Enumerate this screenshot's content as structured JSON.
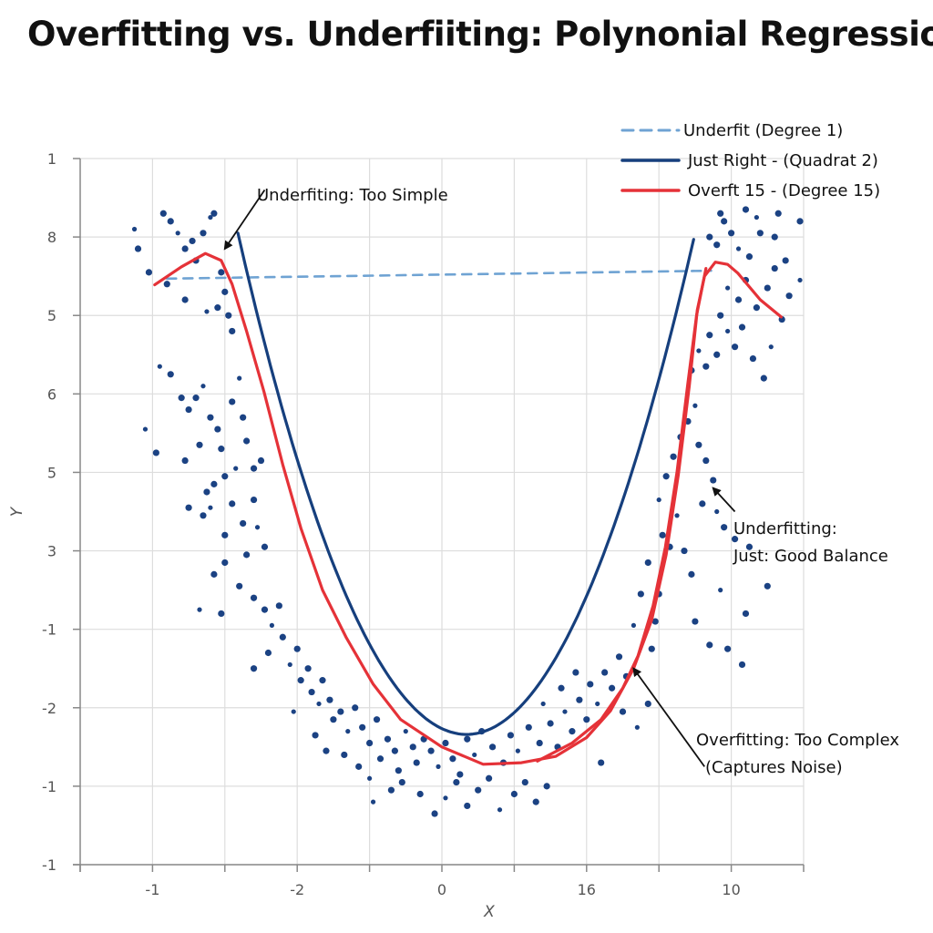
{
  "title": "Overfitting vs. Underfiiting: Polynonial Regression",
  "colors": {
    "underfit": "#6fa3d3",
    "just_right": "#163f7d",
    "overfit": "#e53238",
    "points": "#1b4283",
    "grid": "#dddddd",
    "axis": "#888888",
    "text": "#111111"
  },
  "chart_data": {
    "type": "scatter",
    "title": "Overfitting vs. Underfiiting: Polynonial Regression",
    "xlabel": "X",
    "ylabel": "Y",
    "xlim": [
      -5,
      5
    ],
    "ylim": [
      -1,
      8
    ],
    "grid": true,
    "x_ticks": [
      {
        "value": -4,
        "label": "-1"
      },
      {
        "value": -2,
        "label": "-2"
      },
      {
        "value": 0,
        "label": "0"
      },
      {
        "value": 2,
        "label": "16"
      },
      {
        "value": 4,
        "label": "10"
      }
    ],
    "x_minor_ticks": [
      -5,
      -3,
      -1,
      1,
      3,
      5
    ],
    "y_ticks": [
      {
        "value": 8,
        "label": "1"
      },
      {
        "value": 7,
        "label": "8"
      },
      {
        "value": 6,
        "label": "5"
      },
      {
        "value": 5,
        "label": "6"
      },
      {
        "value": 4,
        "label": "5"
      },
      {
        "value": 3,
        "label": "3"
      },
      {
        "value": 2,
        "label": "-1"
      },
      {
        "value": 1,
        "label": "-2"
      },
      {
        "value": 0,
        "label": "-1"
      },
      {
        "value": -1,
        "label": "-1"
      }
    ],
    "legend": {
      "position": "top-right",
      "entries": [
        {
          "label": "Underfit (Degree 1)",
          "style": "dashed",
          "series": "underfit"
        },
        {
          "label": "Just Right - (Quadrat 2)",
          "style": "solid",
          "series": "just_right"
        },
        {
          "label": "Overft 15 - (Degree 15)",
          "style": "solid",
          "series": "overfit"
        }
      ]
    },
    "series": [
      {
        "name": "Underfit (Degree 1)",
        "key": "underfit",
        "type": "line",
        "points": [
          [
            -3.8,
            6.47
          ],
          [
            3.72,
            6.57
          ]
        ]
      },
      {
        "name": "Just Right - (Quadrat 2)",
        "key": "just_right",
        "type": "quadratic",
        "vertex": [
          0.34,
          0.66
        ],
        "coefficient": 0.64,
        "x_range": [
          -2.82,
          3.5
        ]
      },
      {
        "name": "Overft 15 - (Degree 15)",
        "key": "overfit",
        "type": "line",
        "points": [
          [
            -3.97,
            6.39
          ],
          [
            -3.6,
            6.62
          ],
          [
            -3.27,
            6.79
          ],
          [
            -3.05,
            6.7
          ],
          [
            -2.9,
            6.4
          ],
          [
            -2.7,
            5.8
          ],
          [
            -2.46,
            5.03
          ],
          [
            -2.2,
            4.1
          ],
          [
            -1.95,
            3.29
          ],
          [
            -1.65,
            2.5
          ],
          [
            -1.32,
            1.89
          ],
          [
            -0.95,
            1.3
          ],
          [
            -0.57,
            0.85
          ],
          [
            0.0,
            0.5
          ],
          [
            0.57,
            0.28
          ],
          [
            1.1,
            0.3
          ],
          [
            1.57,
            0.38
          ],
          [
            2.0,
            0.62
          ],
          [
            2.33,
            0.96
          ],
          [
            2.65,
            1.5
          ],
          [
            2.9,
            2.12
          ],
          [
            3.1,
            2.95
          ],
          [
            3.27,
            3.98
          ],
          [
            3.42,
            5.1
          ],
          [
            3.53,
            6.07
          ],
          [
            3.63,
            6.5
          ],
          [
            3.78,
            6.68
          ],
          [
            3.95,
            6.65
          ],
          [
            4.09,
            6.54
          ],
          [
            4.4,
            6.2
          ],
          [
            4.69,
            5.98
          ]
        ]
      },
      {
        "name": "Overft 15 - (Degree 15) inner strand",
        "key": "overfit",
        "type": "line",
        "points": [
          [
            1.32,
            0.32
          ],
          [
            1.8,
            0.55
          ],
          [
            2.2,
            0.85
          ],
          [
            2.5,
            1.25
          ],
          [
            2.71,
            1.66
          ],
          [
            2.92,
            2.3
          ],
          [
            3.09,
            3.05
          ],
          [
            3.25,
            4.0
          ],
          [
            3.4,
            5.14
          ],
          [
            3.52,
            6.0
          ],
          [
            3.65,
            6.6
          ]
        ]
      },
      {
        "name": "Data points",
        "key": "points",
        "type": "scatter",
        "points": [
          [
            -4.25,
            7.1
          ],
          [
            -4.2,
            6.85
          ],
          [
            -4.05,
            6.55
          ],
          [
            -3.85,
            7.3
          ],
          [
            -3.75,
            7.2
          ],
          [
            -3.65,
            7.05
          ],
          [
            -3.55,
            6.85
          ],
          [
            -3.45,
            6.95
          ],
          [
            -3.4,
            6.7
          ],
          [
            -3.3,
            7.05
          ],
          [
            -3.2,
            7.25
          ],
          [
            -3.15,
            7.3
          ],
          [
            -3.05,
            6.55
          ],
          [
            -3.0,
            6.3
          ],
          [
            -3.1,
            6.1
          ],
          [
            -3.25,
            6.05
          ],
          [
            -3.55,
            6.2
          ],
          [
            -3.8,
            6.4
          ],
          [
            -2.95,
            6.0
          ],
          [
            -2.9,
            5.8
          ],
          [
            -3.9,
            5.35
          ],
          [
            -3.75,
            5.25
          ],
          [
            -3.6,
            4.95
          ],
          [
            -3.5,
            4.8
          ],
          [
            -3.4,
            4.95
          ],
          [
            -3.3,
            5.1
          ],
          [
            -3.2,
            4.7
          ],
          [
            -3.1,
            4.55
          ],
          [
            -3.05,
            4.3
          ],
          [
            -2.9,
            4.9
          ],
          [
            -2.8,
            5.2
          ],
          [
            -2.75,
            4.7
          ],
          [
            -2.7,
            4.4
          ],
          [
            -2.6,
            4.05
          ],
          [
            -2.5,
            4.15
          ],
          [
            -2.85,
            4.05
          ],
          [
            -3.0,
            3.95
          ],
          [
            -3.15,
            3.85
          ],
          [
            -3.25,
            3.75
          ],
          [
            -3.5,
            3.55
          ],
          [
            -4.1,
            4.55
          ],
          [
            -3.95,
            4.25
          ],
          [
            -3.55,
            4.15
          ],
          [
            -3.35,
            4.35
          ],
          [
            -3.3,
            3.45
          ],
          [
            -3.2,
            3.55
          ],
          [
            -3.0,
            3.2
          ],
          [
            -2.9,
            3.6
          ],
          [
            -2.75,
            3.35
          ],
          [
            -2.6,
            3.65
          ],
          [
            -2.55,
            3.3
          ],
          [
            -2.45,
            3.05
          ],
          [
            -2.7,
            2.95
          ],
          [
            -3.0,
            2.85
          ],
          [
            -3.15,
            2.7
          ],
          [
            -3.35,
            2.25
          ],
          [
            -3.05,
            2.2
          ],
          [
            -2.8,
            2.55
          ],
          [
            -2.6,
            2.4
          ],
          [
            -2.45,
            2.25
          ],
          [
            -2.35,
            2.05
          ],
          [
            -2.25,
            2.3
          ],
          [
            -2.2,
            1.9
          ],
          [
            -2.4,
            1.7
          ],
          [
            -2.6,
            1.5
          ],
          [
            -2.1,
            1.55
          ],
          [
            -2.0,
            1.75
          ],
          [
            -1.95,
            1.35
          ],
          [
            -1.85,
            1.5
          ],
          [
            -1.8,
            1.2
          ],
          [
            -1.7,
            1.05
          ],
          [
            -1.65,
            1.35
          ],
          [
            -1.55,
            1.1
          ],
          [
            -1.5,
            0.85
          ],
          [
            -1.4,
            0.95
          ],
          [
            -1.3,
            0.7
          ],
          [
            -1.2,
            1.0
          ],
          [
            -1.1,
            0.75
          ],
          [
            -1.0,
            0.55
          ],
          [
            -0.9,
            0.85
          ],
          [
            -2.05,
            0.95
          ],
          [
            -1.75,
            0.65
          ],
          [
            -1.6,
            0.45
          ],
          [
            -1.35,
            0.4
          ],
          [
            -1.15,
            0.25
          ],
          [
            -1.0,
            0.1
          ],
          [
            -0.85,
            0.35
          ],
          [
            -0.75,
            0.6
          ],
          [
            -0.65,
            0.45
          ],
          [
            -0.6,
            0.2
          ],
          [
            -0.5,
            0.7
          ],
          [
            -0.4,
            0.5
          ],
          [
            -0.35,
            0.3
          ],
          [
            -0.25,
            0.6
          ],
          [
            -0.15,
            0.45
          ],
          [
            -0.05,
            0.25
          ],
          [
            0.05,
            0.55
          ],
          [
            0.15,
            0.35
          ],
          [
            0.25,
            0.15
          ],
          [
            0.35,
            0.6
          ],
          [
            -0.95,
            -0.2
          ],
          [
            -0.7,
            -0.05
          ],
          [
            -0.55,
            0.05
          ],
          [
            -0.3,
            -0.1
          ],
          [
            -0.1,
            -0.35
          ],
          [
            0.05,
            -0.15
          ],
          [
            0.2,
            0.05
          ],
          [
            0.35,
            -0.25
          ],
          [
            0.5,
            -0.05
          ],
          [
            0.65,
            0.1
          ],
          [
            0.8,
            -0.3
          ],
          [
            1.0,
            -0.1
          ],
          [
            1.15,
            0.05
          ],
          [
            1.3,
            -0.2
          ],
          [
            1.45,
            0.0
          ],
          [
            0.45,
            0.4
          ],
          [
            0.55,
            0.7
          ],
          [
            0.7,
            0.5
          ],
          [
            0.85,
            0.3
          ],
          [
            0.95,
            0.65
          ],
          [
            1.05,
            0.45
          ],
          [
            1.2,
            0.75
          ],
          [
            1.35,
            0.55
          ],
          [
            1.5,
            0.8
          ],
          [
            1.6,
            0.5
          ],
          [
            1.7,
            0.95
          ],
          [
            1.8,
            0.7
          ],
          [
            1.9,
            1.1
          ],
          [
            2.0,
            0.85
          ],
          [
            2.05,
            1.3
          ],
          [
            2.15,
            1.05
          ],
          [
            2.25,
            1.45
          ],
          [
            2.35,
            1.25
          ],
          [
            2.45,
            1.65
          ],
          [
            2.55,
            1.4
          ],
          [
            1.4,
            1.05
          ],
          [
            1.65,
            1.25
          ],
          [
            1.85,
            1.45
          ],
          [
            2.2,
            0.3
          ],
          [
            2.5,
            0.95
          ],
          [
            2.7,
            0.75
          ],
          [
            2.85,
            1.05
          ],
          [
            2.9,
            1.75
          ],
          [
            2.95,
            2.1
          ],
          [
            3.0,
            2.45
          ],
          [
            2.65,
            2.05
          ],
          [
            2.75,
            2.45
          ],
          [
            2.85,
            2.85
          ],
          [
            3.05,
            3.2
          ],
          [
            3.15,
            3.05
          ],
          [
            3.25,
            3.45
          ],
          [
            3.35,
            3.0
          ],
          [
            3.45,
            2.7
          ],
          [
            3.5,
            2.1
          ],
          [
            3.7,
            1.8
          ],
          [
            3.0,
            3.65
          ],
          [
            3.1,
            3.95
          ],
          [
            3.2,
            4.2
          ],
          [
            3.3,
            4.45
          ],
          [
            3.4,
            4.65
          ],
          [
            3.5,
            4.85
          ],
          [
            3.55,
            4.35
          ],
          [
            3.65,
            4.15
          ],
          [
            3.75,
            3.9
          ],
          [
            3.6,
            3.6
          ],
          [
            3.8,
            3.5
          ],
          [
            3.9,
            3.3
          ],
          [
            4.05,
            3.15
          ],
          [
            4.25,
            3.05
          ],
          [
            4.5,
            2.55
          ],
          [
            3.85,
            2.5
          ],
          [
            4.2,
            2.2
          ],
          [
            3.95,
            1.75
          ],
          [
            4.15,
            1.55
          ],
          [
            3.45,
            5.3
          ],
          [
            3.55,
            5.55
          ],
          [
            3.65,
            5.35
          ],
          [
            3.7,
            5.75
          ],
          [
            3.8,
            5.5
          ],
          [
            3.85,
            6.0
          ],
          [
            3.95,
            5.8
          ],
          [
            4.05,
            5.6
          ],
          [
            4.15,
            5.85
          ],
          [
            4.3,
            5.45
          ],
          [
            4.45,
            5.2
          ],
          [
            4.55,
            5.6
          ],
          [
            4.35,
            6.1
          ],
          [
            4.5,
            6.35
          ],
          [
            4.2,
            6.45
          ],
          [
            4.1,
            6.2
          ],
          [
            3.95,
            6.35
          ],
          [
            3.8,
            6.9
          ],
          [
            3.7,
            7.0
          ],
          [
            3.9,
            7.2
          ],
          [
            4.0,
            7.05
          ],
          [
            4.1,
            6.85
          ],
          [
            4.25,
            6.75
          ],
          [
            4.4,
            7.05
          ],
          [
            4.6,
            6.6
          ],
          [
            4.75,
            6.7
          ],
          [
            4.95,
            6.45
          ],
          [
            4.7,
            5.95
          ],
          [
            4.65,
            7.3
          ],
          [
            4.95,
            7.2
          ],
          [
            4.6,
            7.0
          ],
          [
            4.35,
            7.25
          ],
          [
            3.85,
            7.3
          ],
          [
            4.2,
            7.35
          ],
          [
            4.8,
            6.25
          ]
        ]
      }
    ],
    "annotations": [
      {
        "text": "Underfiting: Too Simple",
        "arrow_from": [
          -2.45,
          7.6
        ],
        "arrow_to": [
          -3.0,
          6.85
        ]
      },
      {
        "text_lines": [
          "Underfitting:",
          "Just: Good Balance"
        ],
        "arrow_from": [
          4.05,
          3.5
        ],
        "arrow_to": [
          3.75,
          3.8
        ]
      },
      {
        "text_lines": [
          "Overfitting: Too Complex",
          "(Captures Noise)"
        ],
        "arrow_from": [
          3.63,
          0.25
        ],
        "arrow_to": [
          2.65,
          1.5
        ]
      }
    ]
  }
}
